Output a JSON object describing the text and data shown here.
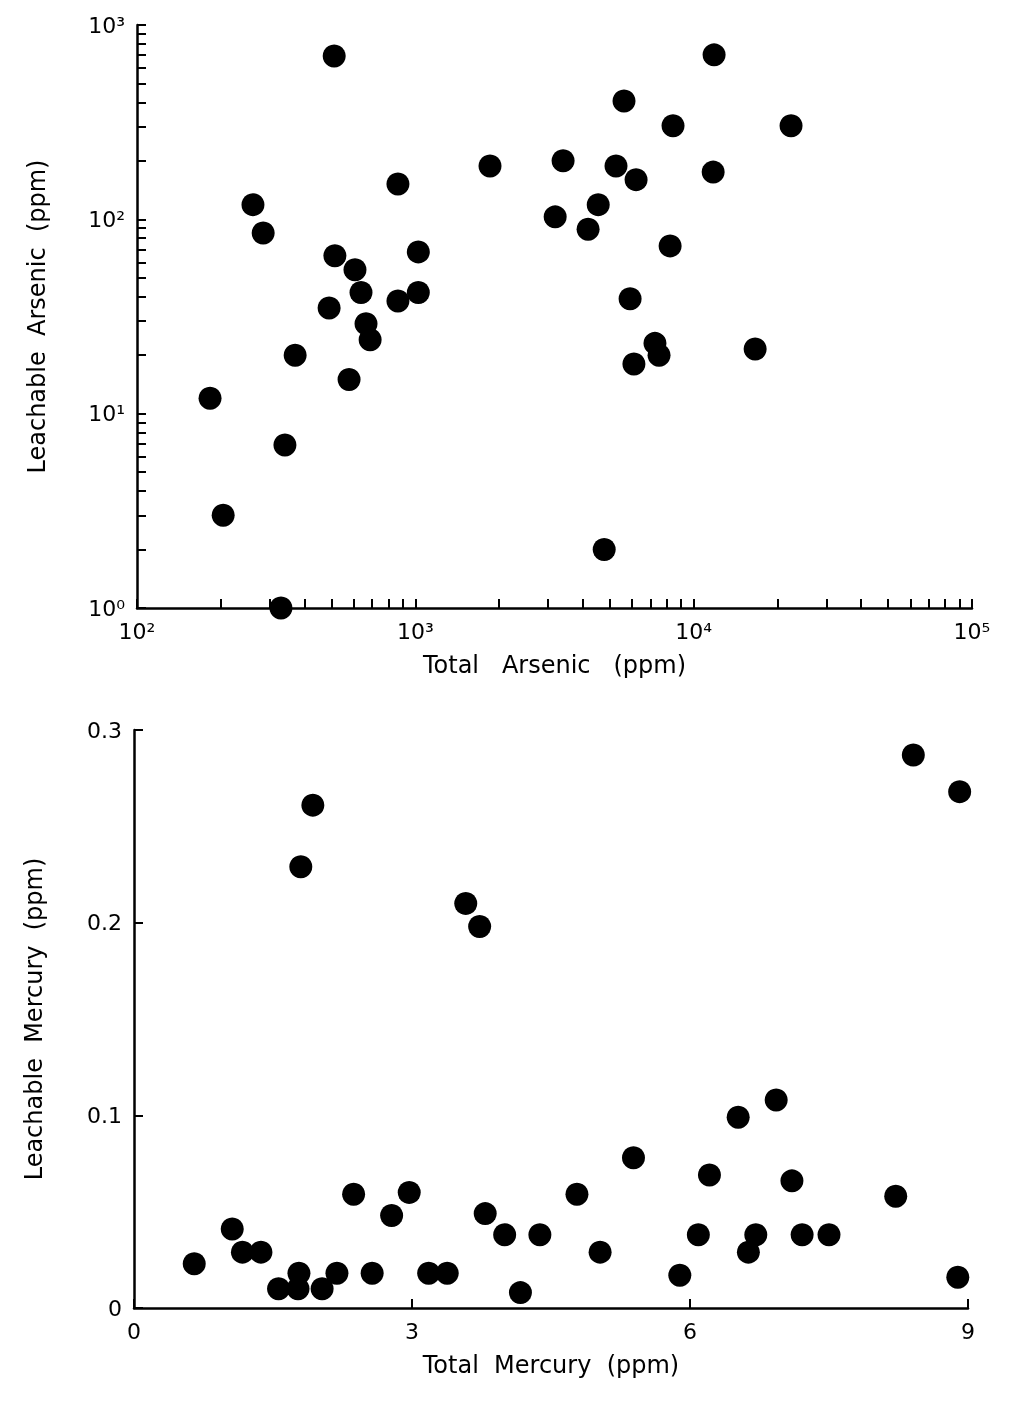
{
  "chart_data": [
    {
      "type": "scatter",
      "xlabel": "Total   Arsenic   (ppm)",
      "ylabel": "Leachable  Arsenic  (ppm)",
      "log": "xy",
      "marker": "circle",
      "series": [
        {
          "color": "#000000",
          "x": [
            183,
            204,
            261,
            284,
            329,
            340,
            370,
            511,
            490,
            514,
            578,
            607,
            638,
            665,
            688,
            866,
            866,
            1025,
            1025,
            1855,
            3180,
            3395,
            4175,
            4540,
            4770,
            5620,
            5260,
            5910,
            6210,
            6100,
            7260,
            7510,
            8230,
            8430,
            11750,
            11840,
            16630,
            22380
          ],
          "values": [
            12,
            3.0,
            119,
            85,
            1.0,
            6.9,
            20,
            693,
            35,
            65,
            15,
            55,
            42,
            29,
            24,
            152,
            38,
            68,
            42,
            188,
            103,
            200,
            89,
            119,
            2.0,
            406,
            188,
            39,
            160,
            18,
            23,
            20,
            73,
            303,
            175,
            702,
            21.5,
            303
          ]
        }
      ],
      "xlim": [
        100,
        100000
      ],
      "xticks": [
        {
          "value": 100,
          "label": "10²"
        },
        {
          "value": 200,
          "label": null
        },
        {
          "value": 300,
          "label": null
        },
        {
          "value": 400,
          "label": null
        },
        {
          "value": 500,
          "label": null
        },
        {
          "value": 600,
          "label": null
        },
        {
          "value": 700,
          "label": null
        },
        {
          "value": 800,
          "label": null
        },
        {
          "value": 900,
          "label": null
        },
        {
          "value": 1000,
          "label": "10³"
        },
        {
          "value": 2000,
          "label": null
        },
        {
          "value": 3000,
          "label": null
        },
        {
          "value": 4000,
          "label": null
        },
        {
          "value": 5000,
          "label": null
        },
        {
          "value": 6000,
          "label": null
        },
        {
          "value": 7000,
          "label": null
        },
        {
          "value": 8000,
          "label": null
        },
        {
          "value": 9000,
          "label": null
        },
        {
          "value": 10000,
          "label": "10⁴"
        },
        {
          "value": 20000,
          "label": null
        },
        {
          "value": 30000,
          "label": null
        },
        {
          "value": 40000,
          "label": null
        },
        {
          "value": 50000,
          "label": null
        },
        {
          "value": 60000,
          "label": null
        },
        {
          "value": 70000,
          "label": null
        },
        {
          "value": 80000,
          "label": null
        },
        {
          "value": 90000,
          "label": null
        },
        {
          "value": 100000,
          "label": "10⁵"
        }
      ],
      "ylim": [
        1,
        1000
      ],
      "yticks": [
        {
          "value": 1,
          "label": "10⁰"
        },
        {
          "value": 2,
          "label": null
        },
        {
          "value": 3,
          "label": null
        },
        {
          "value": 4,
          "label": null
        },
        {
          "value": 5,
          "label": null
        },
        {
          "value": 6,
          "label": null
        },
        {
          "value": 7,
          "label": null
        },
        {
          "value": 8,
          "label": null
        },
        {
          "value": 9,
          "label": null
        },
        {
          "value": 10,
          "label": "10¹"
        },
        {
          "value": 20,
          "label": null
        },
        {
          "value": 30,
          "label": null
        },
        {
          "value": 40,
          "label": null
        },
        {
          "value": 50,
          "label": null
        },
        {
          "value": 60,
          "label": null
        },
        {
          "value": 70,
          "label": null
        },
        {
          "value": 80,
          "label": null
        },
        {
          "value": 90,
          "label": null
        },
        {
          "value": 100,
          "label": "10²"
        },
        {
          "value": 200,
          "label": null
        },
        {
          "value": 300,
          "label": null
        },
        {
          "value": 400,
          "label": null
        },
        {
          "value": 500,
          "label": null
        },
        {
          "value": 600,
          "label": null
        },
        {
          "value": 700,
          "label": null
        },
        {
          "value": 800,
          "label": null
        },
        {
          "value": 900,
          "label": null
        },
        {
          "value": 1000,
          "label": "10³"
        }
      ]
    },
    {
      "type": "scatter",
      "xlabel": "Total  Mercury  (ppm)",
      "ylabel": "Leachable  Mercury  (ppm)",
      "marker": "circle",
      "series": [
        {
          "color": "#000000",
          "x": [
            0.65,
            1.06,
            1.17,
            1.37,
            1.56,
            1.77,
            1.78,
            1.8,
            1.93,
            2.03,
            2.19,
            2.37,
            2.57,
            2.78,
            2.97,
            3.18,
            3.38,
            3.58,
            3.73,
            3.79,
            4.0,
            4.17,
            4.38,
            4.78,
            5.03,
            5.39,
            5.89,
            6.09,
            6.21,
            6.52,
            6.63,
            6.71,
            6.93,
            7.1,
            7.21,
            7.5,
            8.22,
            8.41,
            8.91,
            8.89
          ],
          "values": [
            0.023,
            0.041,
            0.029,
            0.029,
            0.01,
            0.01,
            0.018,
            0.229,
            0.261,
            0.01,
            0.018,
            0.059,
            0.018,
            0.048,
            0.06,
            0.018,
            0.018,
            0.21,
            0.198,
            0.049,
            0.038,
            0.008,
            0.038,
            0.059,
            0.029,
            0.078,
            0.017,
            0.038,
            0.069,
            0.099,
            0.029,
            0.038,
            0.108,
            0.066,
            0.038,
            0.038,
            0.058,
            0.287,
            0.268,
            0.016
          ]
        }
      ],
      "xlim": [
        0,
        9
      ],
      "xticks": [
        0,
        3,
        6,
        9
      ],
      "ylim": [
        0,
        0.3
      ],
      "yticks": [
        {
          "value": 0,
          "label": "0"
        },
        {
          "value": 0.1,
          "label": "0.1"
        },
        {
          "value": 0.2,
          "label": "0.2"
        },
        {
          "value": 0.3,
          "label": "0.3"
        }
      ]
    }
  ]
}
